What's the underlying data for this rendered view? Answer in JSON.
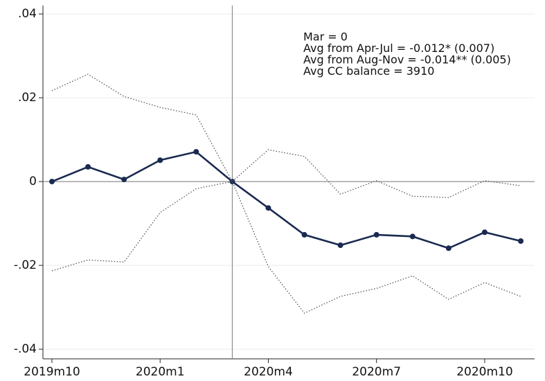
{
  "chart_data": {
    "type": "line",
    "categories": [
      "2019m10",
      null,
      null,
      "2020m1",
      null,
      null,
      "2020m4",
      null,
      null,
      "2020m7",
      null,
      null,
      "2020m10",
      null
    ],
    "series": [
      {
        "color": "#1a2a50",
        "dash": "solid",
        "markers": true,
        "values": [
          0,
          0.0035,
          0.0005,
          0.0051,
          0.0071,
          0,
          -0.0063,
          -0.0127,
          -0.0152,
          -0.0127,
          -0.0131,
          -0.0159,
          -0.0121,
          -0.0142
        ]
      },
      {
        "color": "#555555",
        "dash": "dotted",
        "markers": false,
        "values": [
          0.0217,
          0.0256,
          0.0203,
          0.0177,
          0.0159,
          0,
          0.0076,
          0.006,
          -0.003,
          0.0002,
          -0.0035,
          -0.0038,
          0.0002,
          -0.001
        ]
      },
      {
        "color": "#555555",
        "dash": "dotted",
        "markers": false,
        "values": [
          -0.0213,
          -0.0187,
          -0.0192,
          -0.0074,
          -0.0017,
          0,
          -0.0203,
          -0.0314,
          -0.0274,
          -0.0255,
          -0.0225,
          -0.0281,
          -0.0241,
          -0.0274
        ]
      }
    ],
    "ylim": [
      -0.0423,
      0.042
    ],
    "yticks": [
      {
        "value": 0.04,
        "label": ".04"
      },
      {
        "value": 0.02,
        "label": ".02"
      },
      0,
      {
        "value": -0.02,
        "label": "-.02"
      },
      {
        "value": -0.04,
        "label": "-.04"
      }
    ],
    "grid": true,
    "hline": 0,
    "vline_index": 5,
    "annotations": [
      "Mar = 0",
      "Avg from Apr-Jul = -0.012* (0.007)",
      "Avg from Aug-Nov = -0.014** (0.005)",
      "Avg CC balance = 3910"
    ]
  }
}
